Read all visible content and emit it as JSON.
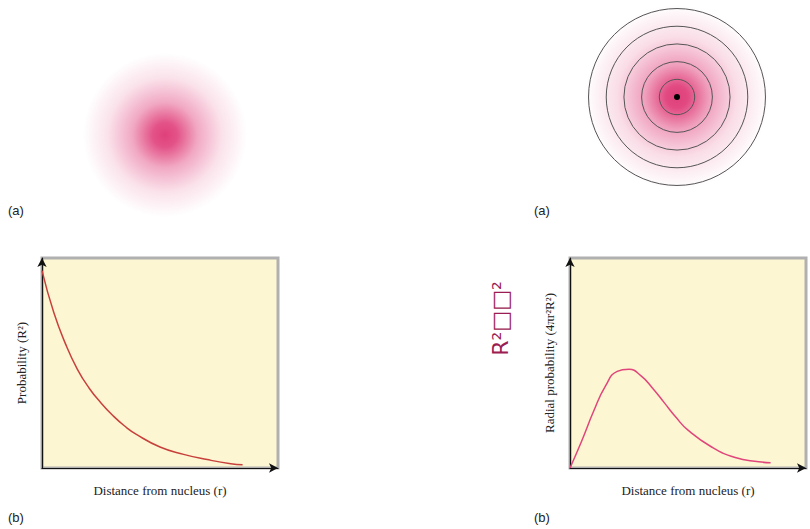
{
  "figures": [
    {
      "label": "(a)",
      "kind": "cloud",
      "color": "#e0407a"
    },
    {
      "label": "(a)",
      "kind": "shells",
      "color": "#e0407a"
    }
  ],
  "annotation": "R²□□²",
  "chart_data": [
    {
      "type": "line",
      "panel": "(b)",
      "x_label": "Distance from nucleus (r)",
      "y_label": "Probability (R²)",
      "x": [
        0,
        0.5,
        1,
        1.5,
        2,
        2.5,
        3,
        3.5,
        4,
        5,
        6,
        7,
        8,
        8.5
      ],
      "values": [
        0.94,
        0.74,
        0.59,
        0.47,
        0.38,
        0.31,
        0.25,
        0.2,
        0.16,
        0.1,
        0.065,
        0.04,
        0.02,
        0.015
      ],
      "xlim": [
        0,
        10
      ],
      "ylim": [
        0,
        1
      ],
      "color": "#c8403c",
      "grid": false,
      "tick_labels": false
    },
    {
      "type": "line",
      "panel": "(b)",
      "x_label": "Distance from nucleus (r)",
      "y_label": "Radial probability (4πr²R²)",
      "x": [
        0,
        0.5,
        1,
        1.5,
        2,
        2.5,
        3,
        3.5,
        4,
        4.5,
        5,
        6,
        7,
        8,
        8.5
      ],
      "values": [
        0,
        0.13,
        0.27,
        0.39,
        0.46,
        0.47,
        0.44,
        0.38,
        0.31,
        0.24,
        0.18,
        0.1,
        0.05,
        0.03,
        0.025
      ],
      "xlim": [
        0,
        10
      ],
      "ylim": [
        0,
        1
      ],
      "color": "#e0457b",
      "grid": false,
      "tick_labels": false
    }
  ]
}
